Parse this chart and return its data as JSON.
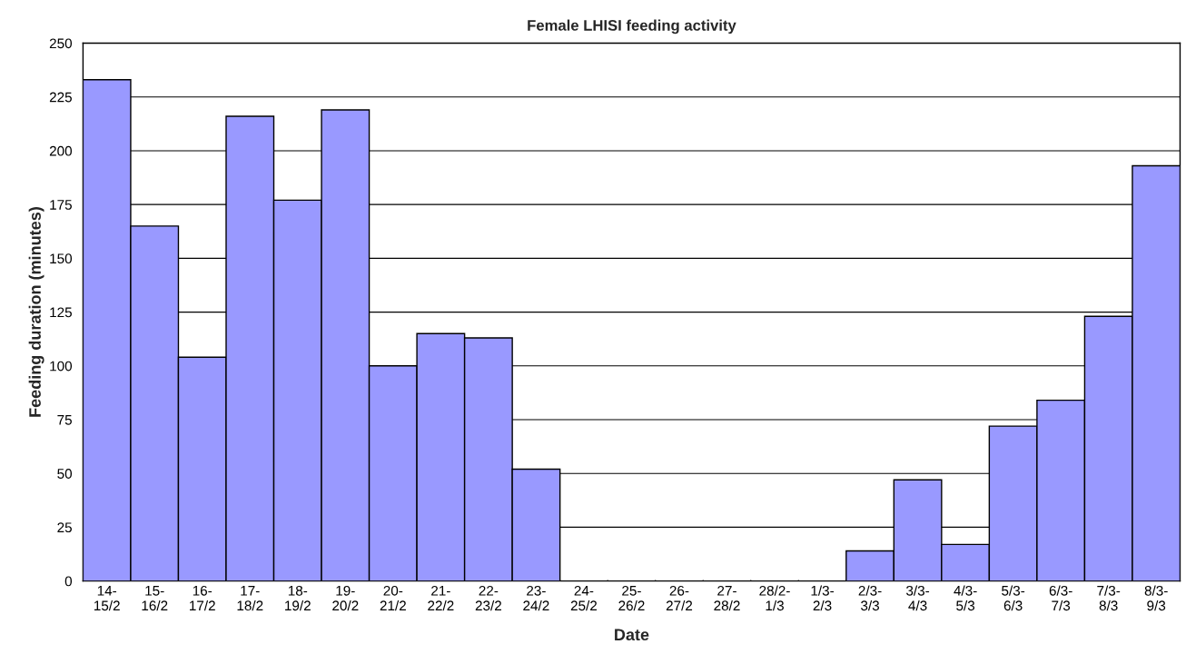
{
  "chart_data": {
    "type": "bar",
    "title": "Female LHISI feeding activity",
    "xlabel": "Date",
    "ylabel": "Feeding duration (minutes)",
    "categories": [
      "14-\n15/2",
      "15-\n16/2",
      "16-\n17/2",
      "17-\n18/2",
      "18-\n19/2",
      "19-\n20/2",
      "20-\n21/2",
      "21-\n22/2",
      "22-\n23/2",
      "23-\n24/2",
      "24-\n25/2",
      "25-\n26/2",
      "26-\n27/2",
      "27-\n28/2",
      "28/2-\n1/3",
      "1/3-\n2/3",
      "2/3-\n3/3",
      "3/3-\n4/3",
      "4/3-\n5/3",
      "5/3-\n6/3",
      "6/3-\n7/3",
      "7/3-\n8/3",
      "8/3-\n9/3"
    ],
    "values": [
      233,
      165,
      104,
      216,
      177,
      219,
      100,
      115,
      113,
      52,
      0,
      0,
      0,
      0,
      0,
      0,
      14,
      47,
      17,
      72,
      84,
      123,
      193
    ],
    "color": "#9999ff",
    "ylim": [
      0,
      250
    ],
    "yticks": [
      0,
      25,
      50,
      75,
      100,
      125,
      150,
      175,
      200,
      225,
      250
    ],
    "grid": "y",
    "legend": false
  }
}
